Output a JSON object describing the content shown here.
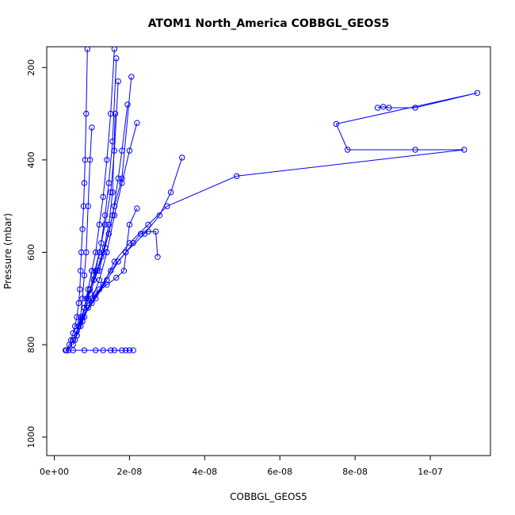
{
  "chart_data": {
    "type": "line",
    "title": "ATOM1 North_America COBBGL_GEOS5",
    "xlabel": "COBBGL_GEOS5",
    "ylabel": "Pressure (mbar)",
    "xlim": [
      -2e-09,
      1.16e-07
    ],
    "ylim": [
      1040,
      155
    ],
    "y_reversed": true,
    "x_ticks": [
      {
        "value": 0,
        "label": "0e+00"
      },
      {
        "value": 2e-08,
        "label": "2e-08"
      },
      {
        "value": 4e-08,
        "label": "4e-08"
      },
      {
        "value": 6e-08,
        "label": "6e-08"
      },
      {
        "value": 8e-08,
        "label": "8e-08"
      },
      {
        "value": 1e-07,
        "label": "1e-07"
      }
    ],
    "y_ticks": [
      {
        "value": 200,
        "label": "200"
      },
      {
        "value": 400,
        "label": "400"
      },
      {
        "value": 600,
        "label": "600"
      },
      {
        "value": 800,
        "label": "800"
      },
      {
        "value": 1000,
        "label": "1000"
      }
    ],
    "color": "#0000ff",
    "series": [
      {
        "x": [
          3.2e-09,
          4e-09,
          4.5e-09,
          5e-09,
          5.5e-09,
          6e-09,
          6.5e-09,
          6.8e-09,
          7e-09,
          7.2e-09,
          7.5e-09,
          7.8e-09,
          8e-09,
          8.2e-09,
          8.5e-09,
          8.8e-09
        ],
        "y": [
          812,
          800,
          790,
          775,
          760,
          740,
          710,
          680,
          640,
          600,
          550,
          500,
          450,
          400,
          300,
          160
        ]
      },
      {
        "x": [
          3.8e-09,
          5e-09,
          6e-09,
          7e-09,
          7.5e-09,
          8e-09,
          8.5e-09,
          9e-09,
          9.5e-09,
          1e-08
        ],
        "y": [
          812,
          790,
          770,
          740,
          700,
          650,
          600,
          500,
          400,
          330
        ]
      },
      {
        "x": [
          5e-09,
          6e-09,
          7e-09,
          8e-09,
          9e-09,
          1e-08,
          1.1e-08,
          1.2e-08,
          1.3e-08,
          1.4e-08,
          1.5e-08,
          1.6e-08
        ],
        "y": [
          800,
          780,
          760,
          720,
          680,
          640,
          600,
          540,
          480,
          400,
          300,
          160
        ]
      },
      {
        "x": [
          5.5e-09,
          6.5e-09,
          8e-09,
          9.5e-09,
          1.1e-08,
          1.25e-08,
          1.35e-08,
          1.45e-08,
          1.55e-08,
          1.65e-08
        ],
        "y": [
          790,
          760,
          720,
          680,
          640,
          580,
          520,
          450,
          360,
          180
        ]
      },
      {
        "x": [
          6e-09,
          7.5e-09,
          9e-09,
          1.05e-08,
          1.2e-08,
          1.35e-08,
          1.5e-08,
          1.6e-08,
          1.7e-08
        ],
        "y": [
          780,
          750,
          700,
          650,
          600,
          540,
          470,
          380,
          230
        ]
      },
      {
        "x": [
          6e-09,
          8e-09,
          1e-08,
          1.2e-08,
          1.4e-08,
          1.6e-08,
          1.8e-08,
          2e-08,
          2.2e-08
        ],
        "y": [
          770,
          740,
          700,
          660,
          600,
          520,
          450,
          380,
          320
        ]
      },
      {
        "x": [
          6.5e-09,
          9e-09,
          1.2e-08,
          1.5e-08,
          1.9e-08,
          2.4e-08,
          2.8e-08,
          3.1e-08,
          3.4e-08
        ],
        "y": [
          760,
          720,
          680,
          640,
          600,
          560,
          520,
          470,
          395
        ]
      },
      {
        "x": [
          7e-09,
          1e-08,
          1.3e-08,
          1.6e-08,
          2e-08,
          2.5e-08,
          3e-08,
          4.85e-08,
          1.09e-07,
          9.6e-08,
          7.8e-08,
          7.5e-08,
          1.125e-07,
          9.6e-08,
          8.9e-08,
          8.75e-08,
          8.6e-08
        ],
        "y": [
          750,
          710,
          670,
          620,
          580,
          540,
          500,
          435,
          378,
          378,
          378,
          322,
          255,
          287,
          287,
          285,
          287
        ]
      },
      {
        "x": [
          7.5e-09,
          1.1e-08,
          1.4e-08,
          1.7e-08,
          1.9e-08,
          2.1e-08,
          2.3e-08,
          2.5e-08,
          2.7e-08,
          2.75e-08
        ],
        "y": [
          740,
          700,
          660,
          620,
          600,
          580,
          560,
          555,
          555,
          610
        ]
      },
      {
        "x": [
          8e-09,
          1.1e-08,
          1.4e-08,
          1.65e-08,
          1.85e-08,
          2e-08,
          2.2e-08
        ],
        "y": [
          720,
          690,
          670,
          655,
          640,
          540,
          505
        ]
      },
      {
        "x": [
          8.5e-09,
          1.05e-08,
          1.25e-08,
          1.45e-08,
          1.6e-08,
          1.8e-08,
          2.05e-08
        ],
        "y": [
          700,
          660,
          610,
          560,
          500,
          440,
          220
        ]
      },
      {
        "x": [
          3e-09,
          5e-09,
          8e-09,
          1.1e-08,
          1.3e-08,
          1.5e-08,
          1.6e-08,
          1.8e-08,
          1.9e-08,
          2e-08,
          2.1e-08
        ],
        "y": [
          812,
          812,
          812,
          812,
          812,
          812,
          812,
          812,
          812,
          812,
          812
        ]
      },
      {
        "x": [
          9.5e-09,
          1.15e-08,
          1.35e-08,
          1.55e-08,
          1.7e-08,
          1.8e-08,
          1.95e-08
        ],
        "y": [
          690,
          640,
          590,
          520,
          440,
          380,
          280
        ]
      },
      {
        "x": [
          1e-08,
          1.2e-08,
          1.3e-08,
          1.45e-08,
          1.55e-08,
          1.62e-08
        ],
        "y": [
          640,
          640,
          600,
          540,
          470,
          300
        ]
      }
    ]
  }
}
